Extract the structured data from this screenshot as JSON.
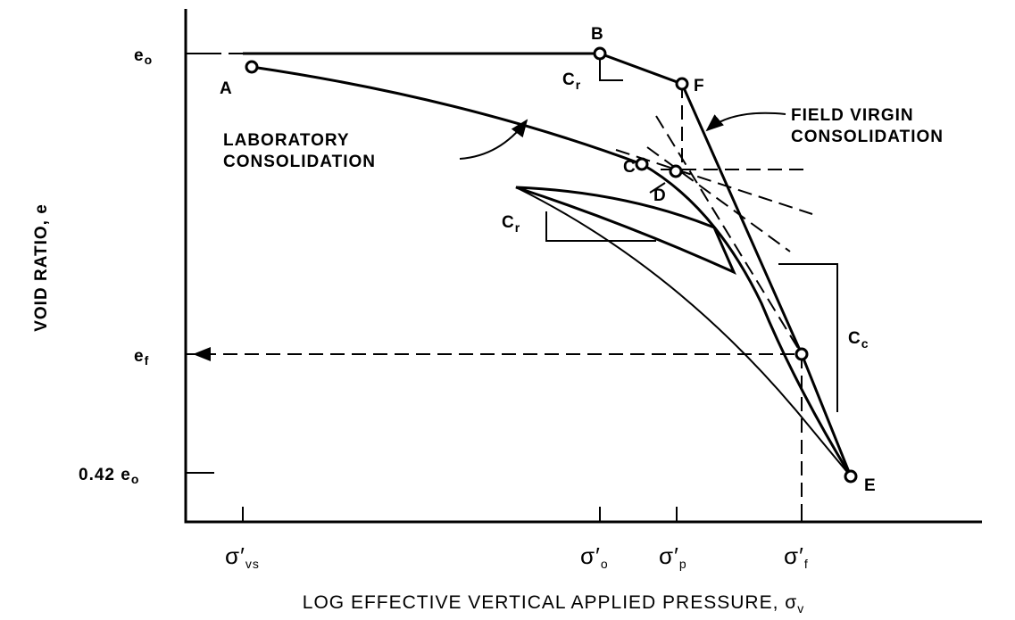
{
  "y_axis": {
    "title": "VOID RATIO, e",
    "ticks": [
      {
        "text": "e",
        "sub": "o"
      },
      {
        "text": "e",
        "sub": "f"
      },
      {
        "text": "0.42 e",
        "sub": "o"
      }
    ]
  },
  "x_axis": {
    "title": "LOG EFFECTIVE VERTICAL APPLIED PRESSURE, σ",
    "title_sub": "v",
    "ticks": [
      {
        "text": "σ′",
        "sub": "vs"
      },
      {
        "text": "σ′",
        "sub": "o"
      },
      {
        "text": "σ′",
        "sub": "p"
      },
      {
        "text": "σ′",
        "sub": "f"
      }
    ]
  },
  "points": [
    "A",
    "B",
    "C",
    "D",
    "E",
    "F"
  ],
  "annotations": {
    "laboratory": [
      "LABORATORY",
      "CONSOLIDATION"
    ],
    "field": [
      "FIELD VIRGIN",
      "CONSOLIDATION"
    ],
    "cr_upper": {
      "text": "C",
      "sub": "r"
    },
    "cr_lower": {
      "text": "C",
      "sub": "r"
    },
    "cc": {
      "text": "C",
      "sub": "c"
    }
  }
}
